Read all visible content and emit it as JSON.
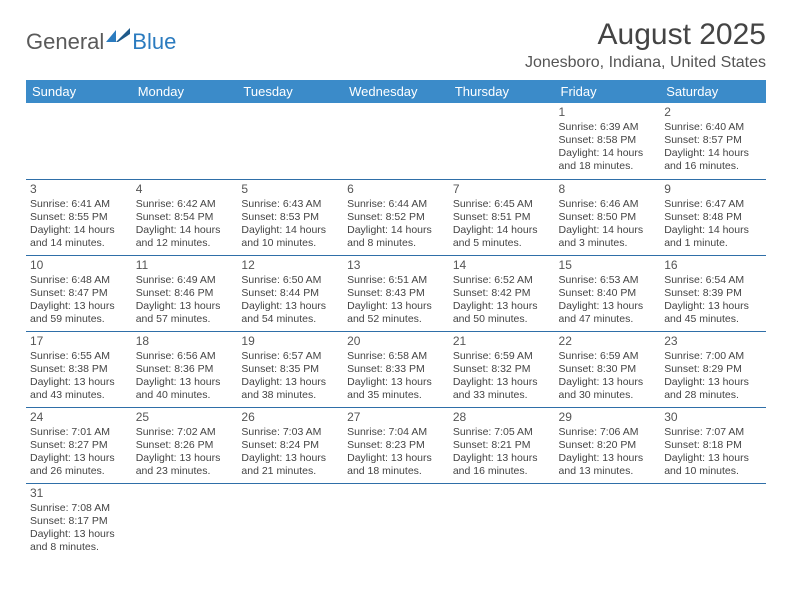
{
  "logo": {
    "text1": "General",
    "text2": "Blue"
  },
  "title": "August 2025",
  "location": "Jonesboro, Indiana, United States",
  "colors": {
    "header_bg": "#3b8bc9",
    "header_text": "#ffffff",
    "border": "#2f6fa8",
    "text": "#444444",
    "logo_gray": "#5a5a5a",
    "logo_blue": "#2b7bbf"
  },
  "weekdays": [
    "Sunday",
    "Monday",
    "Tuesday",
    "Wednesday",
    "Thursday",
    "Friday",
    "Saturday"
  ],
  "weeks": [
    [
      null,
      null,
      null,
      null,
      null,
      {
        "n": "1",
        "sr": "Sunrise: 6:39 AM",
        "ss": "Sunset: 8:58 PM",
        "d1": "Daylight: 14 hours",
        "d2": "and 18 minutes."
      },
      {
        "n": "2",
        "sr": "Sunrise: 6:40 AM",
        "ss": "Sunset: 8:57 PM",
        "d1": "Daylight: 14 hours",
        "d2": "and 16 minutes."
      }
    ],
    [
      {
        "n": "3",
        "sr": "Sunrise: 6:41 AM",
        "ss": "Sunset: 8:55 PM",
        "d1": "Daylight: 14 hours",
        "d2": "and 14 minutes."
      },
      {
        "n": "4",
        "sr": "Sunrise: 6:42 AM",
        "ss": "Sunset: 8:54 PM",
        "d1": "Daylight: 14 hours",
        "d2": "and 12 minutes."
      },
      {
        "n": "5",
        "sr": "Sunrise: 6:43 AM",
        "ss": "Sunset: 8:53 PM",
        "d1": "Daylight: 14 hours",
        "d2": "and 10 minutes."
      },
      {
        "n": "6",
        "sr": "Sunrise: 6:44 AM",
        "ss": "Sunset: 8:52 PM",
        "d1": "Daylight: 14 hours",
        "d2": "and 8 minutes."
      },
      {
        "n": "7",
        "sr": "Sunrise: 6:45 AM",
        "ss": "Sunset: 8:51 PM",
        "d1": "Daylight: 14 hours",
        "d2": "and 5 minutes."
      },
      {
        "n": "8",
        "sr": "Sunrise: 6:46 AM",
        "ss": "Sunset: 8:50 PM",
        "d1": "Daylight: 14 hours",
        "d2": "and 3 minutes."
      },
      {
        "n": "9",
        "sr": "Sunrise: 6:47 AM",
        "ss": "Sunset: 8:48 PM",
        "d1": "Daylight: 14 hours",
        "d2": "and 1 minute."
      }
    ],
    [
      {
        "n": "10",
        "sr": "Sunrise: 6:48 AM",
        "ss": "Sunset: 8:47 PM",
        "d1": "Daylight: 13 hours",
        "d2": "and 59 minutes."
      },
      {
        "n": "11",
        "sr": "Sunrise: 6:49 AM",
        "ss": "Sunset: 8:46 PM",
        "d1": "Daylight: 13 hours",
        "d2": "and 57 minutes."
      },
      {
        "n": "12",
        "sr": "Sunrise: 6:50 AM",
        "ss": "Sunset: 8:44 PM",
        "d1": "Daylight: 13 hours",
        "d2": "and 54 minutes."
      },
      {
        "n": "13",
        "sr": "Sunrise: 6:51 AM",
        "ss": "Sunset: 8:43 PM",
        "d1": "Daylight: 13 hours",
        "d2": "and 52 minutes."
      },
      {
        "n": "14",
        "sr": "Sunrise: 6:52 AM",
        "ss": "Sunset: 8:42 PM",
        "d1": "Daylight: 13 hours",
        "d2": "and 50 minutes."
      },
      {
        "n": "15",
        "sr": "Sunrise: 6:53 AM",
        "ss": "Sunset: 8:40 PM",
        "d1": "Daylight: 13 hours",
        "d2": "and 47 minutes."
      },
      {
        "n": "16",
        "sr": "Sunrise: 6:54 AM",
        "ss": "Sunset: 8:39 PM",
        "d1": "Daylight: 13 hours",
        "d2": "and 45 minutes."
      }
    ],
    [
      {
        "n": "17",
        "sr": "Sunrise: 6:55 AM",
        "ss": "Sunset: 8:38 PM",
        "d1": "Daylight: 13 hours",
        "d2": "and 43 minutes."
      },
      {
        "n": "18",
        "sr": "Sunrise: 6:56 AM",
        "ss": "Sunset: 8:36 PM",
        "d1": "Daylight: 13 hours",
        "d2": "and 40 minutes."
      },
      {
        "n": "19",
        "sr": "Sunrise: 6:57 AM",
        "ss": "Sunset: 8:35 PM",
        "d1": "Daylight: 13 hours",
        "d2": "and 38 minutes."
      },
      {
        "n": "20",
        "sr": "Sunrise: 6:58 AM",
        "ss": "Sunset: 8:33 PM",
        "d1": "Daylight: 13 hours",
        "d2": "and 35 minutes."
      },
      {
        "n": "21",
        "sr": "Sunrise: 6:59 AM",
        "ss": "Sunset: 8:32 PM",
        "d1": "Daylight: 13 hours",
        "d2": "and 33 minutes."
      },
      {
        "n": "22",
        "sr": "Sunrise: 6:59 AM",
        "ss": "Sunset: 8:30 PM",
        "d1": "Daylight: 13 hours",
        "d2": "and 30 minutes."
      },
      {
        "n": "23",
        "sr": "Sunrise: 7:00 AM",
        "ss": "Sunset: 8:29 PM",
        "d1": "Daylight: 13 hours",
        "d2": "and 28 minutes."
      }
    ],
    [
      {
        "n": "24",
        "sr": "Sunrise: 7:01 AM",
        "ss": "Sunset: 8:27 PM",
        "d1": "Daylight: 13 hours",
        "d2": "and 26 minutes."
      },
      {
        "n": "25",
        "sr": "Sunrise: 7:02 AM",
        "ss": "Sunset: 8:26 PM",
        "d1": "Daylight: 13 hours",
        "d2": "and 23 minutes."
      },
      {
        "n": "26",
        "sr": "Sunrise: 7:03 AM",
        "ss": "Sunset: 8:24 PM",
        "d1": "Daylight: 13 hours",
        "d2": "and 21 minutes."
      },
      {
        "n": "27",
        "sr": "Sunrise: 7:04 AM",
        "ss": "Sunset: 8:23 PM",
        "d1": "Daylight: 13 hours",
        "d2": "and 18 minutes."
      },
      {
        "n": "28",
        "sr": "Sunrise: 7:05 AM",
        "ss": "Sunset: 8:21 PM",
        "d1": "Daylight: 13 hours",
        "d2": "and 16 minutes."
      },
      {
        "n": "29",
        "sr": "Sunrise: 7:06 AM",
        "ss": "Sunset: 8:20 PM",
        "d1": "Daylight: 13 hours",
        "d2": "and 13 minutes."
      },
      {
        "n": "30",
        "sr": "Sunrise: 7:07 AM",
        "ss": "Sunset: 8:18 PM",
        "d1": "Daylight: 13 hours",
        "d2": "and 10 minutes."
      }
    ],
    [
      {
        "n": "31",
        "sr": "Sunrise: 7:08 AM",
        "ss": "Sunset: 8:17 PM",
        "d1": "Daylight: 13 hours",
        "d2": "and 8 minutes."
      },
      null,
      null,
      null,
      null,
      null,
      null
    ]
  ]
}
